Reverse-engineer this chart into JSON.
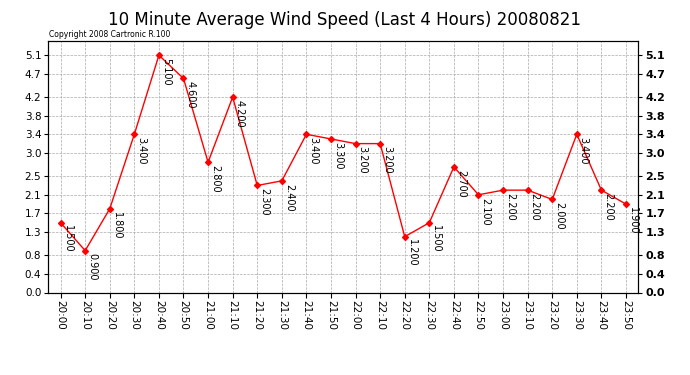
{
  "title": "10 Minute Average Wind Speed (Last 4 Hours) 20080821",
  "copyright": "Copyright 2008 Cartronic R.100",
  "x_labels": [
    "20:00",
    "20:10",
    "20:20",
    "20:30",
    "20:40",
    "20:50",
    "21:00",
    "21:10",
    "21:20",
    "21:30",
    "21:40",
    "21:50",
    "22:00",
    "22:10",
    "22:20",
    "22:30",
    "22:40",
    "22:50",
    "23:00",
    "23:10",
    "23:20",
    "23:30",
    "23:40",
    "23:50"
  ],
  "y_values": [
    1.5,
    0.9,
    1.8,
    3.4,
    5.1,
    4.6,
    2.8,
    4.2,
    2.3,
    2.4,
    3.4,
    3.3,
    3.2,
    3.2,
    1.2,
    1.5,
    2.7,
    2.1,
    2.2,
    2.2,
    2.0,
    3.4,
    2.2,
    1.9
  ],
  "point_labels": [
    "1.500",
    "0.900",
    "1.800",
    "3.400",
    "5.100",
    "4.600",
    "2.800",
    "4.200",
    "2.300",
    "2.400",
    "3.400",
    "3.300",
    "3.200",
    "3.200",
    "1.200",
    "1.500",
    "2.700",
    "2.100",
    "2.200",
    "2.200",
    "2.000",
    "3.400",
    "2.200",
    "1.900"
  ],
  "line_color": "red",
  "marker_color": "red",
  "marker": "D",
  "marker_size": 3,
  "background_color": "#ffffff",
  "grid_color": "#aaaaaa",
  "yticks": [
    0.0,
    0.4,
    0.8,
    1.3,
    1.7,
    2.1,
    2.5,
    3.0,
    3.4,
    3.8,
    4.2,
    4.7,
    5.1
  ],
  "ylim": [
    0.0,
    5.4
  ],
  "title_fontsize": 12,
  "tick_fontsize": 7.5,
  "annotation_fontsize": 7,
  "copyright_text": "Copyright 2008 Cartronic R.100"
}
